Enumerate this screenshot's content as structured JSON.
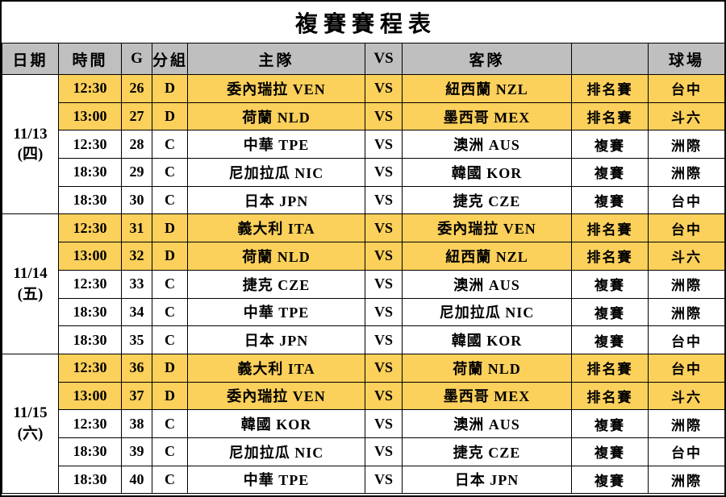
{
  "title": "複賽賽程表",
  "colors": {
    "highlight": "#FBD05B",
    "header_background": "#BFBFBF",
    "grid_line": "#000000"
  },
  "header": {
    "date": "日期",
    "time": "時間",
    "game": "G",
    "group": "分組",
    "home": "主隊",
    "vs": "VS",
    "away": "客隊",
    "phase": "",
    "venue": "球場"
  },
  "groups": [
    {
      "date_line1": "11/13",
      "date_line2": "(四)",
      "games": [
        {
          "time": "12:30",
          "g": "26",
          "grp": "D",
          "home": "委內瑞拉 VEN",
          "vs": "VS",
          "away": "紐西蘭 NZL",
          "phase": "排名賽",
          "venue": "台中",
          "highlight": true
        },
        {
          "time": "13:00",
          "g": "27",
          "grp": "D",
          "home": "荷蘭 NLD",
          "vs": "VS",
          "away": "墨西哥 MEX",
          "phase": "排名賽",
          "venue": "斗六",
          "highlight": true
        },
        {
          "time": "12:30",
          "g": "28",
          "grp": "C",
          "home": "中華 TPE",
          "vs": "VS",
          "away": "澳洲 AUS",
          "phase": "複賽",
          "venue": "洲際",
          "highlight": false
        },
        {
          "time": "18:30",
          "g": "29",
          "grp": "C",
          "home": "尼加拉瓜 NIC",
          "vs": "VS",
          "away": "韓國 KOR",
          "phase": "複賽",
          "venue": "洲際",
          "highlight": false
        },
        {
          "time": "18:30",
          "g": "30",
          "grp": "C",
          "home": "日本 JPN",
          "vs": "VS",
          "away": "捷克 CZE",
          "phase": "複賽",
          "venue": "台中",
          "highlight": false
        }
      ]
    },
    {
      "date_line1": "11/14",
      "date_line2": "(五)",
      "games": [
        {
          "time": "12:30",
          "g": "31",
          "grp": "D",
          "home": "義大利 ITA",
          "vs": "VS",
          "away": "委內瑞拉 VEN",
          "phase": "排名賽",
          "venue": "台中",
          "highlight": true
        },
        {
          "time": "13:00",
          "g": "32",
          "grp": "D",
          "home": "荷蘭 NLD",
          "vs": "VS",
          "away": "紐西蘭 NZL",
          "phase": "排名賽",
          "venue": "斗六",
          "highlight": true
        },
        {
          "time": "12:30",
          "g": "33",
          "grp": "C",
          "home": "捷克 CZE",
          "vs": "VS",
          "away": "澳洲 AUS",
          "phase": "複賽",
          "venue": "洲際",
          "highlight": false
        },
        {
          "time": "18:30",
          "g": "34",
          "grp": "C",
          "home": "中華 TPE",
          "vs": "VS",
          "away": "尼加拉瓜 NIC",
          "phase": "複賽",
          "venue": "洲際",
          "highlight": false
        },
        {
          "time": "18:30",
          "g": "35",
          "grp": "C",
          "home": "日本 JPN",
          "vs": "VS",
          "away": "韓國 KOR",
          "phase": "複賽",
          "venue": "台中",
          "highlight": false
        }
      ]
    },
    {
      "date_line1": "11/15",
      "date_line2": "(六)",
      "games": [
        {
          "time": "12:30",
          "g": "36",
          "grp": "D",
          "home": "義大利 ITA",
          "vs": "VS",
          "away": "荷蘭 NLD",
          "phase": "排名賽",
          "venue": "台中",
          "highlight": true
        },
        {
          "time": "13:00",
          "g": "37",
          "grp": "D",
          "home": "委內瑞拉 VEN",
          "vs": "VS",
          "away": "墨西哥 MEX",
          "phase": "排名賽",
          "venue": "斗六",
          "highlight": true
        },
        {
          "time": "12:30",
          "g": "38",
          "grp": "C",
          "home": "韓國 KOR",
          "vs": "VS",
          "away": "澳洲 AUS",
          "phase": "複賽",
          "venue": "洲際",
          "highlight": false
        },
        {
          "time": "18:30",
          "g": "39",
          "grp": "C",
          "home": "尼加拉瓜 NIC",
          "vs": "VS",
          "away": "捷克 CZE",
          "phase": "複賽",
          "venue": "台中",
          "highlight": false
        },
        {
          "time": "18:30",
          "g": "40",
          "grp": "C",
          "home": "中華 TPE",
          "vs": "VS",
          "away": "日本 JPN",
          "phase": "複賽",
          "venue": "洲際",
          "highlight": false
        }
      ]
    }
  ]
}
